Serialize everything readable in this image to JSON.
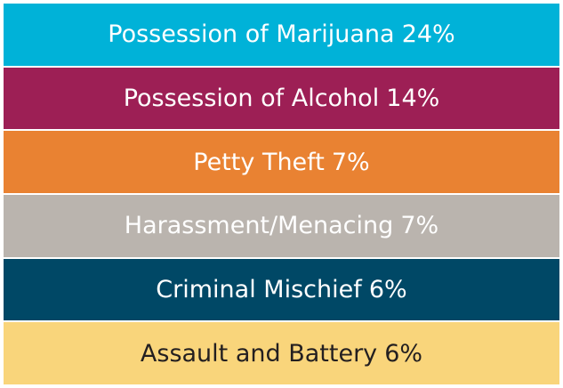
{
  "items": [
    {
      "name": "Possession of Marijuana",
      "share": "24%",
      "color": "#00b2d8",
      "text_color": "#ffffff"
    },
    {
      "name": "Possession of Alcohol",
      "share": "14%",
      "color": "#9d1f55",
      "text_color": "#ffffff"
    },
    {
      "name": "Petty Theft",
      "share": "7%",
      "color": "#e98232",
      "text_color": "#ffffff"
    },
    {
      "name": "Harassment/Menacing",
      "share": "7%",
      "color": "#bab4ae",
      "text_color": "#ffffff"
    },
    {
      "name": "Criminal Mischief",
      "share": "6%",
      "color": "#004866",
      "text_color": "#ffffff"
    },
    {
      "name": "Assault and Battery",
      "share": "6%",
      "color": "#f9d57b",
      "text_color": "#231f20"
    }
  ]
}
